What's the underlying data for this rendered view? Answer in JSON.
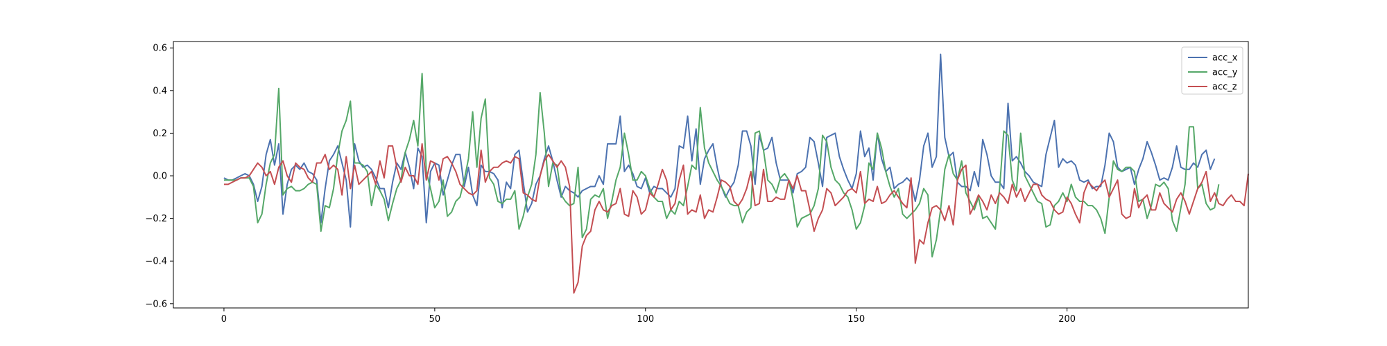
{
  "chart_data": {
    "type": "line",
    "title": "",
    "xlabel": "",
    "ylabel": "",
    "xlim": [
      -12,
      243
    ],
    "ylim": [
      -0.62,
      0.63
    ],
    "xticks": [
      0,
      50,
      100,
      150,
      200
    ],
    "yticks": [
      -0.6,
      -0.4,
      -0.2,
      0.0,
      0.2,
      0.4,
      0.6
    ],
    "xtick_labels": [
      "0",
      "50",
      "100",
      "150",
      "200"
    ],
    "ytick_labels": [
      "−0.6",
      "−0.4",
      "−0.2",
      "0.0",
      "0.2",
      "0.4",
      "0.6"
    ],
    "grid": false,
    "legend_position": "top-right",
    "series": [
      {
        "name": "acc_x",
        "color": "#4c72b0",
        "values": [
          -0.01,
          -0.02,
          -0.02,
          -0.01,
          0.0,
          0.01,
          0.0,
          -0.04,
          -0.12,
          -0.05,
          0.1,
          0.17,
          0.05,
          0.15,
          -0.18,
          -0.04,
          0.03,
          0.05,
          0.03,
          0.06,
          0.02,
          0.01,
          -0.02,
          -0.22,
          -0.06,
          0.07,
          0.1,
          0.14,
          0.06,
          -0.02,
          -0.24,
          0.15,
          0.07,
          0.04,
          0.05,
          0.03,
          -0.01,
          -0.06,
          -0.06,
          -0.15,
          -0.03,
          0.06,
          0.03,
          0.11,
          0.04,
          -0.06,
          0.13,
          0.09,
          -0.22,
          0.02,
          0.06,
          0.05,
          -0.09,
          -0.02,
          0.05,
          0.1,
          0.1,
          -0.05,
          0.04,
          -0.09,
          -0.14,
          0.05,
          0.02,
          0.02,
          0.01,
          -0.02,
          -0.15,
          -0.03,
          -0.06,
          0.1,
          0.12,
          -0.03,
          -0.17,
          -0.13,
          -0.04,
          0.0,
          0.08,
          0.14,
          0.07,
          -0.02,
          -0.1,
          -0.05,
          -0.07,
          -0.08,
          -0.1,
          -0.07,
          -0.06,
          -0.05,
          -0.05,
          0.0,
          -0.04,
          0.15,
          0.15,
          0.15,
          0.28,
          0.02,
          0.05,
          0.01,
          -0.05,
          -0.06,
          -0.01,
          -0.08,
          -0.05,
          -0.06,
          -0.06,
          -0.08,
          -0.1,
          -0.06,
          0.14,
          0.13,
          0.28,
          0.07,
          0.22,
          -0.04,
          0.08,
          0.12,
          0.15,
          0.04,
          -0.05,
          -0.1,
          -0.06,
          -0.03,
          0.05,
          0.21,
          0.21,
          0.14,
          -0.04,
          0.19,
          0.12,
          0.13,
          0.18,
          0.06,
          -0.02,
          -0.02,
          -0.02,
          -0.08,
          0.01,
          0.02,
          0.04,
          0.18,
          0.16,
          0.06,
          -0.05,
          0.18,
          0.19,
          0.2,
          0.09,
          0.03,
          -0.02,
          -0.06,
          0.01,
          0.21,
          0.09,
          0.13,
          -0.02,
          0.2,
          0.08,
          0.02,
          0.04,
          -0.06,
          -0.04,
          -0.03,
          -0.01,
          -0.03,
          -0.12,
          -0.02,
          0.14,
          0.2,
          0.04,
          0.09,
          0.57,
          0.18,
          0.09,
          0.11,
          -0.03,
          -0.05,
          -0.05,
          -0.07,
          0.02,
          -0.05,
          0.17,
          0.1,
          0.0,
          -0.03,
          -0.03,
          -0.06,
          0.34,
          0.07,
          0.09,
          0.06,
          0.02,
          0.0,
          -0.03,
          -0.04,
          -0.05,
          0.1,
          0.18,
          0.26,
          0.04,
          0.08,
          0.06,
          0.07,
          0.05,
          -0.02,
          -0.03,
          -0.02,
          -0.06,
          -0.05,
          -0.05,
          0.05,
          0.2,
          0.16,
          0.04,
          0.02,
          0.03,
          0.04,
          -0.04,
          0.03,
          0.08,
          0.16,
          0.11,
          0.05,
          -0.02,
          -0.01,
          -0.02,
          0.04,
          0.14,
          0.04,
          0.03,
          0.03,
          0.06,
          0.04,
          0.1,
          0.12,
          0.03,
          0.08
        ]
      },
      {
        "name": "acc_y",
        "color": "#55a868",
        "values": [
          -0.02,
          -0.02,
          -0.02,
          -0.02,
          -0.01,
          -0.01,
          -0.01,
          -0.05,
          -0.22,
          -0.18,
          -0.04,
          0.06,
          0.1,
          0.41,
          -0.09,
          -0.06,
          -0.05,
          -0.07,
          -0.07,
          -0.06,
          -0.04,
          -0.03,
          -0.04,
          -0.26,
          -0.14,
          -0.15,
          -0.06,
          0.1,
          0.21,
          0.26,
          0.35,
          0.06,
          0.06,
          0.05,
          0.02,
          -0.14,
          -0.04,
          -0.07,
          -0.11,
          -0.21,
          -0.13,
          -0.06,
          -0.02,
          0.11,
          0.17,
          0.26,
          0.14,
          0.48,
          0.02,
          -0.06,
          -0.15,
          -0.12,
          -0.02,
          -0.19,
          -0.17,
          -0.12,
          -0.1,
          -0.02,
          0.08,
          0.3,
          0.04,
          0.27,
          0.36,
          -0.01,
          -0.04,
          -0.12,
          -0.13,
          -0.11,
          -0.11,
          -0.07,
          -0.25,
          -0.19,
          -0.1,
          -0.04,
          0.1,
          0.39,
          0.2,
          -0.05,
          0.06,
          0.05,
          -0.09,
          -0.12,
          -0.14,
          -0.13,
          0.04,
          -0.29,
          -0.25,
          -0.11,
          -0.09,
          -0.1,
          -0.06,
          -0.2,
          -0.12,
          -0.02,
          0.04,
          0.2,
          0.1,
          -0.02,
          -0.02,
          0.02,
          0.0,
          -0.06,
          -0.1,
          -0.12,
          -0.12,
          -0.2,
          -0.16,
          -0.18,
          -0.12,
          -0.14,
          -0.05,
          0.05,
          0.03,
          0.32,
          0.13,
          0.06,
          0.02,
          -0.02,
          -0.05,
          -0.09,
          -0.13,
          -0.14,
          -0.14,
          -0.22,
          -0.17,
          -0.15,
          0.2,
          0.21,
          0.12,
          -0.02,
          -0.04,
          -0.08,
          -0.01,
          0.01,
          -0.02,
          -0.11,
          -0.24,
          -0.2,
          -0.19,
          -0.18,
          -0.14,
          -0.06,
          0.19,
          0.16,
          0.04,
          -0.02,
          -0.04,
          -0.08,
          -0.1,
          -0.16,
          -0.25,
          -0.22,
          -0.14,
          0.06,
          0.03,
          0.2,
          0.13,
          0.02,
          -0.05,
          -0.1,
          -0.06,
          -0.18,
          -0.2,
          -0.18,
          -0.16,
          -0.13,
          -0.06,
          -0.09,
          -0.38,
          -0.3,
          -0.16,
          0.03,
          0.1,
          0.01,
          -0.02,
          0.07,
          -0.08,
          -0.12,
          -0.16,
          -0.1,
          -0.2,
          -0.19,
          -0.22,
          -0.25,
          -0.06,
          0.21,
          0.19,
          -0.02,
          -0.07,
          0.2,
          0.0,
          -0.04,
          -0.08,
          -0.12,
          -0.13,
          -0.24,
          -0.23,
          -0.14,
          -0.12,
          -0.08,
          -0.12,
          -0.04,
          -0.1,
          -0.12,
          -0.12,
          -0.14,
          -0.14,
          -0.16,
          -0.2,
          -0.27,
          -0.1,
          0.07,
          0.03,
          0.02,
          0.04,
          0.04,
          0.02,
          -0.12,
          -0.11,
          -0.2,
          -0.14,
          -0.04,
          -0.05,
          -0.03,
          -0.06,
          -0.21,
          -0.26,
          -0.15,
          -0.04,
          0.23,
          0.23,
          -0.06,
          -0.04,
          -0.13,
          -0.16,
          -0.15,
          -0.04
        ]
      },
      {
        "name": "acc_z",
        "color": "#c44e52",
        "values": [
          -0.04,
          -0.04,
          -0.03,
          -0.02,
          -0.01,
          -0.01,
          0.0,
          0.03,
          0.06,
          0.04,
          0.0,
          0.02,
          -0.04,
          0.04,
          0.07,
          0.0,
          -0.03,
          0.06,
          0.04,
          0.03,
          -0.01,
          -0.03,
          0.06,
          0.06,
          0.1,
          0.03,
          0.05,
          0.03,
          -0.09,
          0.09,
          -0.06,
          0.05,
          -0.04,
          -0.02,
          0.0,
          0.02,
          -0.04,
          0.07,
          -0.01,
          0.14,
          0.14,
          0.04,
          -0.03,
          0.04,
          0.0,
          0.0,
          -0.04,
          0.15,
          -0.02,
          0.07,
          0.06,
          -0.02,
          0.08,
          0.09,
          0.06,
          0.02,
          -0.04,
          -0.06,
          -0.08,
          -0.09,
          -0.07,
          0.12,
          -0.03,
          0.02,
          0.04,
          0.04,
          0.06,
          0.07,
          0.06,
          0.09,
          0.08,
          -0.08,
          -0.09,
          -0.11,
          -0.12,
          0.0,
          0.07,
          0.1,
          0.07,
          0.04,
          0.07,
          0.04,
          -0.05,
          -0.55,
          -0.5,
          -0.33,
          -0.28,
          -0.26,
          -0.16,
          -0.12,
          -0.16,
          -0.17,
          -0.14,
          -0.13,
          -0.06,
          -0.18,
          -0.19,
          -0.07,
          -0.1,
          -0.18,
          -0.16,
          -0.08,
          -0.1,
          -0.04,
          0.03,
          -0.02,
          -0.16,
          -0.13,
          -0.02,
          0.05,
          -0.18,
          -0.16,
          -0.17,
          -0.09,
          -0.2,
          -0.16,
          -0.17,
          -0.1,
          -0.02,
          -0.03,
          -0.05,
          -0.12,
          -0.14,
          -0.11,
          -0.06,
          0.02,
          -0.14,
          -0.13,
          0.03,
          -0.12,
          -0.12,
          -0.1,
          -0.11,
          -0.11,
          -0.02,
          -0.06,
          0.0,
          -0.07,
          -0.07,
          -0.16,
          -0.26,
          -0.2,
          -0.16,
          -0.06,
          -0.08,
          -0.14,
          -0.12,
          -0.1,
          -0.07,
          -0.06,
          -0.08,
          0.02,
          -0.13,
          -0.11,
          -0.12,
          -0.05,
          -0.13,
          -0.12,
          -0.09,
          -0.07,
          -0.1,
          -0.13,
          -0.15,
          -0.01,
          -0.41,
          -0.3,
          -0.32,
          -0.22,
          -0.15,
          -0.14,
          -0.16,
          -0.21,
          -0.14,
          -0.23,
          -0.02,
          0.03,
          0.05,
          -0.18,
          -0.14,
          -0.09,
          -0.12,
          -0.16,
          -0.09,
          -0.13,
          -0.08,
          -0.1,
          -0.13,
          -0.04,
          -0.1,
          -0.06,
          -0.12,
          -0.08,
          -0.04,
          -0.04,
          -0.09,
          -0.11,
          -0.12,
          -0.16,
          -0.18,
          -0.17,
          -0.1,
          -0.13,
          -0.18,
          -0.22,
          -0.08,
          -0.03,
          -0.05,
          -0.07,
          -0.04,
          -0.02,
          -0.1,
          -0.06,
          -0.02,
          -0.18,
          -0.2,
          -0.19,
          -0.06,
          -0.15,
          -0.11,
          -0.09,
          -0.16,
          -0.16,
          -0.08,
          -0.13,
          -0.15,
          -0.17,
          -0.11,
          -0.08,
          -0.12,
          -0.18,
          -0.12,
          -0.06,
          -0.03,
          0.02,
          -0.12,
          -0.08,
          -0.13,
          -0.14,
          -0.11,
          -0.09,
          -0.12,
          -0.12,
          -0.14,
          0.01
        ]
      }
    ]
  }
}
